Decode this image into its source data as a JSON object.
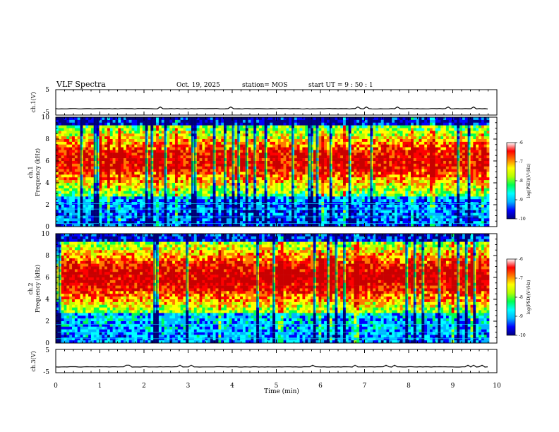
{
  "header": {
    "title": "VLF Spectra",
    "date": "Oct. 19, 2025",
    "station": "station= MOS",
    "start_ut": "start  UT =   9 : 50 : 1"
  },
  "chart_data": {
    "type": "heatmap",
    "title": "VLF Spectra",
    "xlabel": "Time  (min)",
    "x_ticks": [
      "0",
      "1",
      "2",
      "3",
      "4",
      "5",
      "6",
      "7",
      "8",
      "9",
      "10"
    ],
    "xlim": [
      0,
      10
    ],
    "data_end_min": 9.83,
    "panels": [
      {
        "name": "ch1-voltage",
        "type": "line",
        "ylabel": "ch.1(V)",
        "ylim": [
          -5,
          5
        ],
        "y_ticks": [
          "5",
          "-5"
        ],
        "baseline": -2.5
      },
      {
        "name": "ch1-spectrogram",
        "type": "heatmap",
        "ylabel_line1": "ch.1",
        "ylabel_line2": "Frequency  (kHz)",
        "ylim": [
          0,
          10
        ],
        "y_ticks": [
          "0",
          "2",
          "4",
          "6",
          "8",
          "10"
        ],
        "intensity_peak_khz": 6,
        "intensity_bias": 0,
        "lines_khz": [
          0.3,
          0.9,
          1.6,
          2.1
        ],
        "colorbar": {
          "label": "log(PSD)(V²/Hz)",
          "range": [
            -10,
            -6
          ],
          "ticks": [
            "-6",
            "-7",
            "-8",
            "-9",
            "-10"
          ]
        }
      },
      {
        "name": "ch2-spectrogram",
        "type": "heatmap",
        "ylabel_line1": "ch.2",
        "ylabel_line2": "Frequency  (kHz)",
        "ylim": [
          0,
          10
        ],
        "y_ticks": [
          "0",
          "2",
          "4",
          "6",
          "8",
          "10"
        ],
        "intensity_peak_khz": 6,
        "intensity_bias": 0.05,
        "lines_khz": [
          0.4,
          1.0,
          1.7
        ],
        "colorbar": {
          "label": "log(PSD)(V²/Hz)",
          "range": [
            -10,
            -6
          ],
          "ticks": [
            "-6",
            "-7",
            "-8",
            "-9",
            "-10"
          ]
        }
      },
      {
        "name": "ch3-voltage",
        "type": "line",
        "ylabel": "ch.3(V)",
        "ylim": [
          -5,
          5
        ],
        "y_ticks": [
          "5",
          "-5"
        ],
        "baseline": -2.5
      }
    ],
    "colors": [
      "#000080",
      "#0000ff",
      "#00b4ff",
      "#00ffff",
      "#00ff50",
      "#b4ff00",
      "#ffff00",
      "#ff7800",
      "#ff0000",
      "#c80000"
    ]
  }
}
